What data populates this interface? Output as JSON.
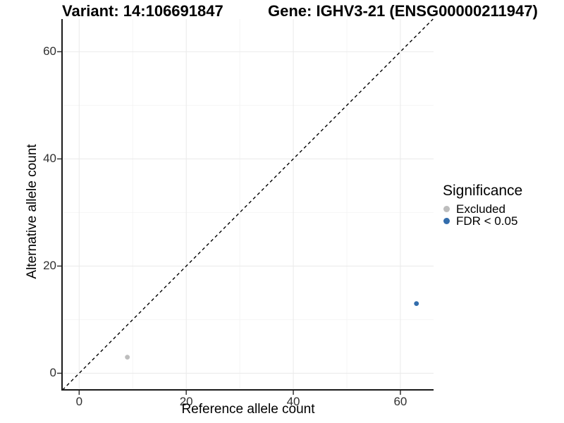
{
  "titles": {
    "variant": "Variant: 14:106691847",
    "gene": "Gene: IGHV3-21 (ENSG00000211947)"
  },
  "chart_data": {
    "type": "scatter",
    "xlabel": "Reference allele count",
    "ylabel": "Alternative allele count",
    "x_ticks": [
      0,
      20,
      40,
      60
    ],
    "y_ticks": [
      0,
      20,
      40,
      60
    ],
    "x_minor_ticks": [
      10,
      30,
      50
    ],
    "y_minor_ticks": [
      10,
      30,
      50
    ],
    "xlim": [
      -3.2,
      66.2
    ],
    "ylim": [
      -3.1,
      66.1
    ],
    "grid": "on",
    "identity_line": {
      "type": "dashed",
      "color": "#000000",
      "description": "y = x diagonal"
    },
    "series": [
      {
        "name": "Excluded",
        "color": "#bdbdbd",
        "points": [
          {
            "x": 9,
            "y": 3
          }
        ]
      },
      {
        "name": "FDR < 0.05",
        "color": "#336dac",
        "points": [
          {
            "x": 63,
            "y": 13
          }
        ]
      }
    ],
    "legend": {
      "title": "Significance",
      "position": "right"
    }
  },
  "colors": {
    "excluded": "#bdbdbd",
    "significant": "#336dac",
    "grid_major": "#ebebeb",
    "grid_minor": "#f4f4f4",
    "axis_line": "#1a1a1a",
    "tick_mark": "#333333"
  }
}
